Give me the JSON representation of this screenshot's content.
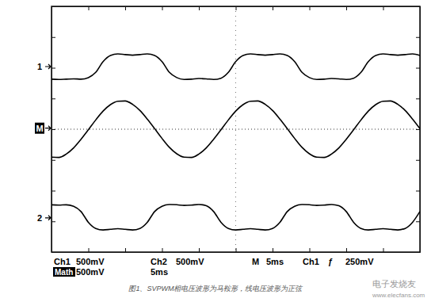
{
  "chart_data": {
    "type": "line",
    "title": "图1、SVPWM相电压波形为马鞍形，线电压波形为正弦",
    "annotations": [
      "Ch1",
      "500mV",
      "Ch2",
      "500mV",
      "M",
      "5ms",
      "Ch1",
      "ƒ",
      "250mV",
      "Math",
      "500mV",
      "5ms",
      "电子发烧友",
      "www.elecfans.com"
    ],
    "x": [
      0,
      1,
      2,
      3,
      4,
      5,
      6,
      7,
      8,
      9,
      10,
      11,
      12,
      13,
      14,
      15,
      16,
      17,
      18,
      19,
      20,
      21,
      22,
      23,
      24,
      25,
      26,
      27,
      28,
      29,
      30,
      31,
      32,
      33,
      34,
      35,
      36,
      37,
      38,
      39,
      40,
      41,
      42,
      43,
      44,
      45,
      46,
      47,
      48,
      49,
      50
    ],
    "series": [
      {
        "name": "1",
        "color": "#000000",
        "values": [
          1.63,
          1.62,
          1.63,
          1.64,
          1.63,
          1.68,
          1.85,
          2.2,
          2.4,
          2.45,
          2.43,
          2.41,
          2.43,
          2.45,
          2.4,
          2.2,
          1.85,
          1.68,
          1.62,
          1.63,
          1.65,
          1.64,
          1.62,
          1.66,
          1.85,
          2.2,
          2.4,
          2.45,
          2.43,
          2.41,
          2.43,
          2.45,
          2.4,
          2.2,
          1.85,
          1.68,
          1.62,
          1.63,
          1.65,
          1.64,
          1.62,
          1.66,
          1.85,
          2.2,
          2.4,
          2.45,
          2.43,
          2.41,
          2.43,
          2.45,
          2.4
        ]
      },
      {
        "name": "M",
        "color": "#000000",
        "values": [
          -0.91,
          -0.92,
          -0.81,
          -0.61,
          -0.33,
          -0.02,
          0.3,
          0.59,
          0.8,
          0.91,
          0.92,
          0.81,
          0.61,
          0.33,
          0.02,
          -0.3,
          -0.59,
          -0.8,
          -0.91,
          -0.92,
          -0.81,
          -0.61,
          -0.33,
          -0.02,
          0.3,
          0.59,
          0.8,
          0.91,
          0.92,
          0.81,
          0.61,
          0.33,
          0.02,
          -0.3,
          -0.59,
          -0.8,
          -0.91,
          -0.92,
          -0.81,
          -0.61,
          -0.33,
          -0.02,
          0.3,
          0.59,
          0.8,
          0.91,
          0.92,
          0.81,
          0.61,
          0.33,
          0.02
        ]
      },
      {
        "name": "2",
        "color": "#000000",
        "values": [
          -2.46,
          -2.47,
          -2.46,
          -2.51,
          -2.68,
          -3.03,
          -3.23,
          -3.28,
          -3.26,
          -3.24,
          -3.26,
          -3.28,
          -3.23,
          -3.03,
          -2.68,
          -2.51,
          -2.45,
          -2.46,
          -2.48,
          -2.47,
          -2.45,
          -2.49,
          -2.68,
          -3.03,
          -3.23,
          -3.28,
          -3.26,
          -3.24,
          -3.26,
          -3.28,
          -3.23,
          -3.03,
          -2.68,
          -2.51,
          -2.45,
          -2.46,
          -2.48,
          -2.47,
          -2.45,
          -2.49,
          -2.68,
          -3.03,
          -3.23,
          -3.28,
          -3.26,
          -3.24,
          -3.26,
          -3.28,
          -3.23,
          -3.03,
          -2.68
        ]
      }
    ],
    "xlim": [
      0,
      50
    ],
    "xticks": [
      0,
      5,
      10,
      15,
      20,
      25,
      30,
      35,
      40,
      45,
      50
    ],
    "ylim": [
      -4,
      4
    ],
    "yticks": [
      -4,
      -3,
      -2,
      -1,
      0,
      1,
      2,
      3,
      4
    ],
    "grid": false,
    "tick_labels": false
  }
}
